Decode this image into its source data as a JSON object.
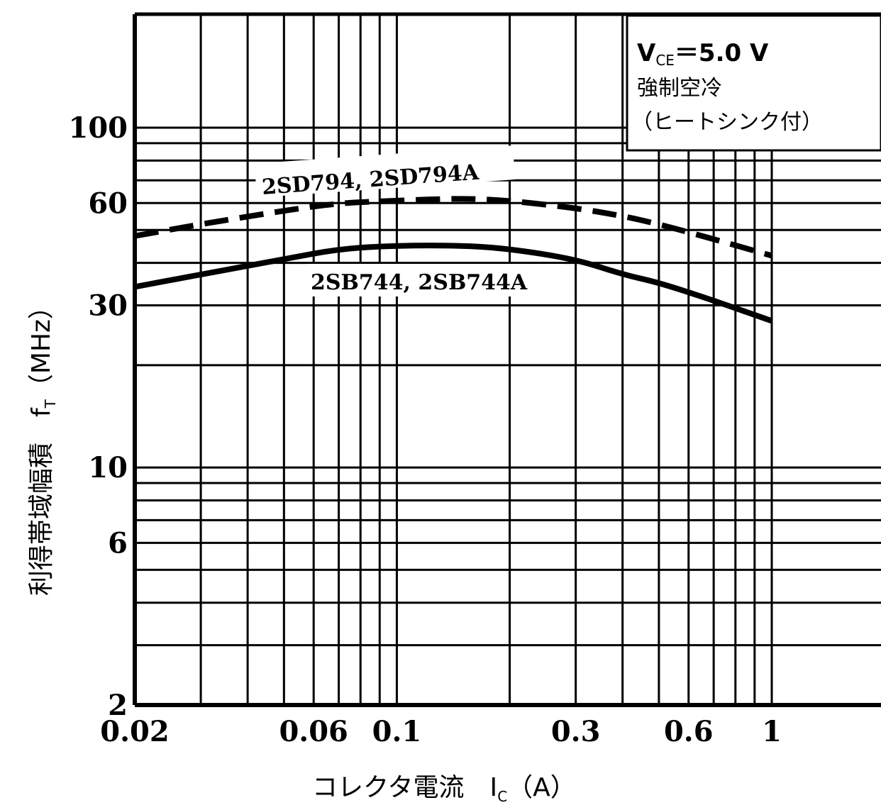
{
  "chart_data": {
    "type": "line",
    "x_scale": "log",
    "y_scale": "log",
    "xlim": [
      0.02,
      1
    ],
    "ylim": [
      2,
      100
    ],
    "x_ticks": [
      {
        "value": 0.02,
        "label": "0.02"
      },
      {
        "value": 0.06,
        "label": "0.06"
      },
      {
        "value": 0.1,
        "label": "0.1"
      },
      {
        "value": 0.3,
        "label": "0.3"
      },
      {
        "value": 0.6,
        "label": "0.6"
      },
      {
        "value": 1,
        "label": "1"
      }
    ],
    "y_ticks": [
      {
        "value": 100,
        "label": "100"
      },
      {
        "value": 60,
        "label": "60"
      },
      {
        "value": 30,
        "label": "30"
      },
      {
        "value": 10,
        "label": "10"
      },
      {
        "value": 6,
        "label": "6"
      },
      {
        "value": 2,
        "label": "2"
      }
    ],
    "grid": true,
    "xlabel": "コレクタ電流　I",
    "xlabel_sub": "C",
    "xlabel_unit": "（A）",
    "ylabel": "利得帯域幅積　f",
    "ylabel_sub": "T",
    "ylabel_unit": "（MHz）",
    "conditions": {
      "line1_main": "V",
      "line1_sub": "CE",
      "line1_rest": "＝5.0 V",
      "line2": "強制空冷",
      "line3": "（ヒートシンク付）"
    },
    "series": [
      {
        "name": "2SD794, 2SD794A",
        "style": "dashed",
        "x": [
          0.02,
          0.03,
          0.05,
          0.07,
          0.1,
          0.15,
          0.2,
          0.3,
          0.4,
          0.5,
          0.7,
          1.0
        ],
        "y": [
          48,
          52,
          57,
          60,
          61,
          62,
          61,
          58,
          55,
          52,
          47,
          42
        ]
      },
      {
        "name": "2SB744, 2SB744A",
        "style": "solid",
        "x": [
          0.02,
          0.03,
          0.05,
          0.07,
          0.1,
          0.15,
          0.2,
          0.3,
          0.4,
          0.5,
          0.7,
          1.0
        ],
        "y": [
          34,
          37,
          41,
          44,
          45,
          45,
          44,
          41,
          37,
          35,
          31,
          27
        ]
      }
    ]
  }
}
